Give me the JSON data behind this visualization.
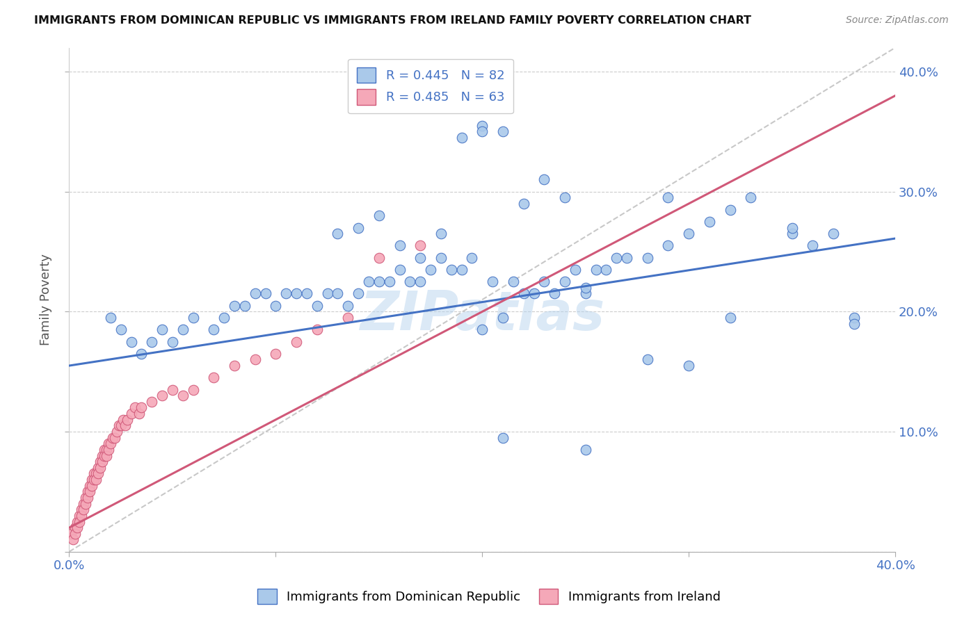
{
  "title": "IMMIGRANTS FROM DOMINICAN REPUBLIC VS IMMIGRANTS FROM IRELAND FAMILY POVERTY CORRELATION CHART",
  "source": "Source: ZipAtlas.com",
  "ylabel": "Family Poverty",
  "legend_label1": "Immigrants from Dominican Republic",
  "legend_label2": "Immigrants from Ireland",
  "r1": 0.445,
  "n1": 82,
  "r2": 0.485,
  "n2": 63,
  "xmin": 0.0,
  "xmax": 0.4,
  "ymin": 0.0,
  "ymax": 0.42,
  "color_blue": "#aac9ea",
  "color_pink": "#f5a8b8",
  "line_blue": "#4472c4",
  "line_pink": "#d05878",
  "line_diag": "#c8c8c8",
  "background_color": "#ffffff",
  "watermark": "ZIPatlas",
  "blue_intercept": 0.155,
  "blue_slope": 0.265,
  "pink_intercept": 0.02,
  "pink_slope": 0.9,
  "blue_scatter_x": [
    0.02,
    0.025,
    0.03,
    0.035,
    0.04,
    0.045,
    0.05,
    0.055,
    0.06,
    0.07,
    0.075,
    0.08,
    0.085,
    0.09,
    0.095,
    0.1,
    0.105,
    0.11,
    0.115,
    0.12,
    0.125,
    0.13,
    0.135,
    0.14,
    0.145,
    0.15,
    0.155,
    0.16,
    0.165,
    0.17,
    0.175,
    0.18,
    0.185,
    0.19,
    0.195,
    0.2,
    0.205,
    0.21,
    0.215,
    0.22,
    0.225,
    0.23,
    0.235,
    0.24,
    0.245,
    0.25,
    0.255,
    0.26,
    0.265,
    0.27,
    0.28,
    0.29,
    0.3,
    0.31,
    0.32,
    0.33,
    0.35,
    0.36,
    0.37,
    0.38,
    0.13,
    0.14,
    0.15,
    0.16,
    0.17,
    0.18,
    0.19,
    0.2,
    0.21,
    0.22,
    0.24,
    0.25,
    0.29,
    0.3,
    0.32,
    0.35,
    0.21,
    0.25,
    0.28,
    0.38,
    0.2,
    0.23
  ],
  "blue_scatter_y": [
    0.195,
    0.185,
    0.175,
    0.165,
    0.175,
    0.185,
    0.175,
    0.185,
    0.195,
    0.185,
    0.195,
    0.205,
    0.205,
    0.215,
    0.215,
    0.205,
    0.215,
    0.215,
    0.215,
    0.205,
    0.215,
    0.215,
    0.205,
    0.215,
    0.225,
    0.225,
    0.225,
    0.235,
    0.225,
    0.225,
    0.235,
    0.245,
    0.235,
    0.235,
    0.245,
    0.185,
    0.225,
    0.195,
    0.225,
    0.215,
    0.215,
    0.225,
    0.215,
    0.225,
    0.235,
    0.215,
    0.235,
    0.235,
    0.245,
    0.245,
    0.245,
    0.255,
    0.265,
    0.275,
    0.285,
    0.295,
    0.265,
    0.255,
    0.265,
    0.195,
    0.265,
    0.27,
    0.28,
    0.255,
    0.245,
    0.265,
    0.345,
    0.355,
    0.35,
    0.29,
    0.295,
    0.22,
    0.295,
    0.155,
    0.195,
    0.27,
    0.095,
    0.085,
    0.16,
    0.19,
    0.35,
    0.31
  ],
  "pink_scatter_x": [
    0.001,
    0.002,
    0.003,
    0.003,
    0.004,
    0.004,
    0.005,
    0.005,
    0.006,
    0.006,
    0.007,
    0.007,
    0.008,
    0.008,
    0.009,
    0.009,
    0.01,
    0.01,
    0.011,
    0.011,
    0.012,
    0.012,
    0.013,
    0.013,
    0.014,
    0.014,
    0.015,
    0.015,
    0.016,
    0.016,
    0.017,
    0.017,
    0.018,
    0.018,
    0.019,
    0.019,
    0.02,
    0.021,
    0.022,
    0.023,
    0.024,
    0.025,
    0.026,
    0.027,
    0.028,
    0.03,
    0.032,
    0.034,
    0.035,
    0.04,
    0.045,
    0.05,
    0.055,
    0.06,
    0.07,
    0.08,
    0.09,
    0.1,
    0.11,
    0.12,
    0.135,
    0.15,
    0.17
  ],
  "pink_scatter_y": [
    0.015,
    0.01,
    0.02,
    0.015,
    0.025,
    0.02,
    0.03,
    0.025,
    0.035,
    0.03,
    0.04,
    0.035,
    0.045,
    0.04,
    0.05,
    0.045,
    0.055,
    0.05,
    0.06,
    0.055,
    0.065,
    0.06,
    0.065,
    0.06,
    0.07,
    0.065,
    0.075,
    0.07,
    0.08,
    0.075,
    0.085,
    0.08,
    0.085,
    0.08,
    0.09,
    0.085,
    0.09,
    0.095,
    0.095,
    0.1,
    0.105,
    0.105,
    0.11,
    0.105,
    0.11,
    0.115,
    0.12,
    0.115,
    0.12,
    0.125,
    0.13,
    0.135,
    0.13,
    0.135,
    0.145,
    0.155,
    0.16,
    0.165,
    0.175,
    0.185,
    0.195,
    0.245,
    0.255
  ]
}
